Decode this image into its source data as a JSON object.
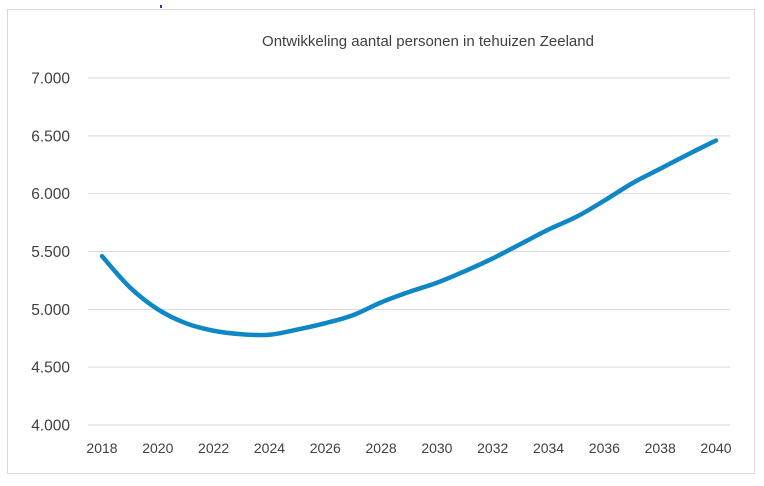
{
  "chart_data": {
    "type": "line",
    "title": "Ontwikkeling aantal personen in tehuizen Zeeland",
    "xlabel": "",
    "ylabel": "",
    "ylim": [
      4000,
      7000
    ],
    "xlim": [
      2018,
      2040
    ],
    "y_ticks": [
      "4.000",
      "4.500",
      "5.000",
      "5.500",
      "6.000",
      "6.500",
      "7.000"
    ],
    "y_tick_values": [
      4000,
      4500,
      5000,
      5500,
      6000,
      6500,
      7000
    ],
    "x_ticks": [
      "2018",
      "2020",
      "2022",
      "2024",
      "2026",
      "2028",
      "2030",
      "2032",
      "2034",
      "2036",
      "2038",
      "2040"
    ],
    "x_tick_values": [
      2018,
      2020,
      2022,
      2024,
      2026,
      2028,
      2030,
      2032,
      2034,
      2036,
      2038,
      2040
    ],
    "grid": true,
    "legend": "none",
    "series": [
      {
        "color": "#0f86c6",
        "x": [
          2018,
          2019,
          2020,
          2021,
          2022,
          2023,
          2024,
          2025,
          2026,
          2027,
          2028,
          2029,
          2030,
          2031,
          2032,
          2033,
          2034,
          2035,
          2036,
          2037,
          2038,
          2039,
          2040
        ],
        "values": [
          5460,
          5190,
          5000,
          4880,
          4815,
          4785,
          4780,
          4825,
          4880,
          4950,
          5060,
          5150,
          5230,
          5330,
          5440,
          5565,
          5690,
          5800,
          5940,
          6090,
          6215,
          6340,
          6460
        ]
      }
    ]
  }
}
